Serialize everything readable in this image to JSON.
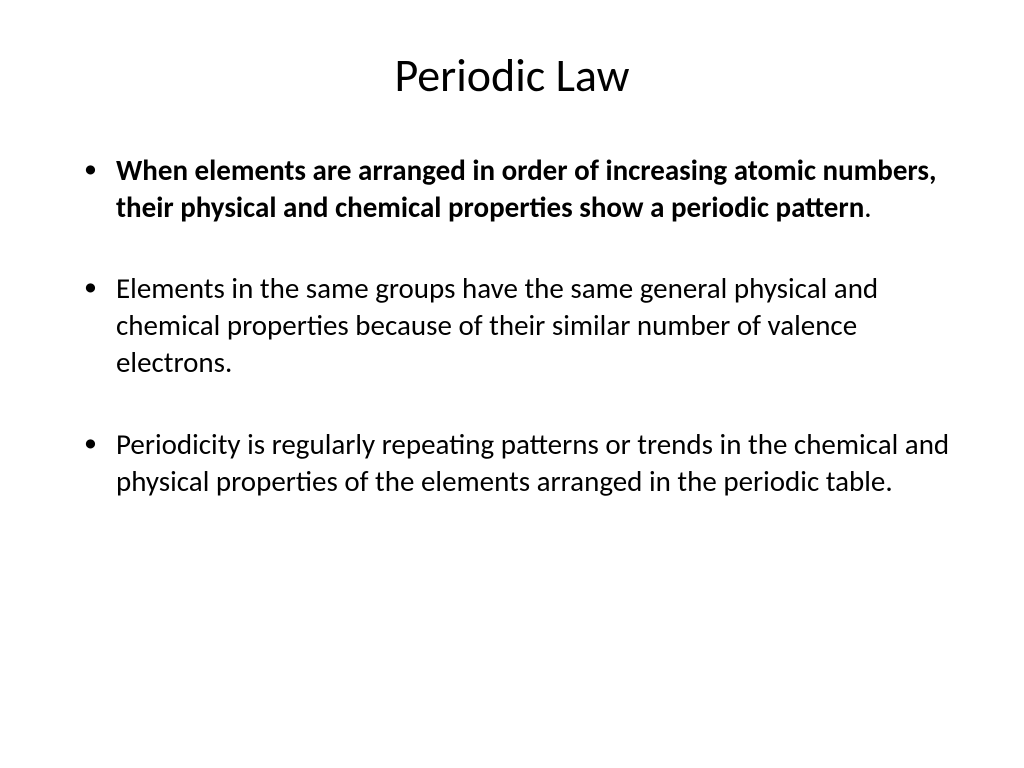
{
  "slide": {
    "title": "Periodic Law",
    "bullets": [
      {
        "text": "When elements are arranged in order of increasing atomic numbers, their physical and chemical properties show a periodic pattern",
        "bold": true,
        "trailing_period_normal": true
      },
      {
        "text": "Elements in the same groups have the same general physical and chemical properties because of their similar number of valence electrons.",
        "bold": false
      },
      {
        "text": "Periodicity is regularly repeating patterns or trends in the chemical and physical properties of the elements arranged in the periodic table.",
        "bold": false
      }
    ],
    "styling": {
      "background_color": "#ffffff",
      "text_color": "#000000",
      "title_fontsize": 46,
      "body_fontsize": 29,
      "font_family": "Calibri"
    }
  }
}
